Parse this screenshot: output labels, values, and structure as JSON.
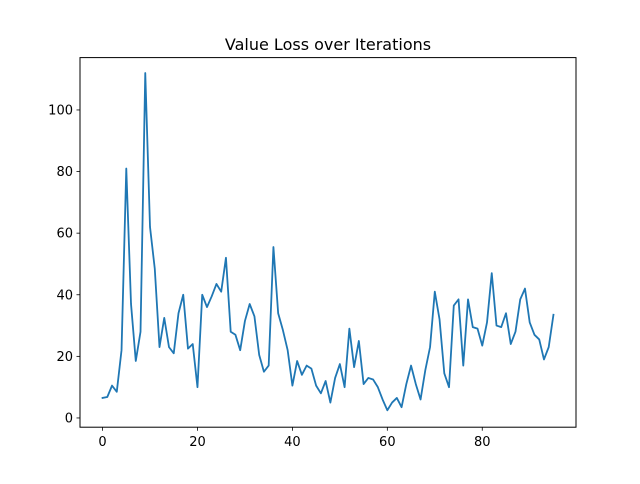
{
  "chart_data": {
    "type": "line",
    "title": "Value Loss over Iterations",
    "xlabel": "",
    "ylabel": "",
    "xlim": [
      -4.75,
      99.75
    ],
    "ylim": [
      -3.0,
      117.0
    ],
    "xticks": [
      0,
      20,
      40,
      60,
      80
    ],
    "yticks": [
      0,
      20,
      40,
      60,
      80,
      100
    ],
    "grid": false,
    "legend": "none",
    "series": [
      {
        "color": "#1f77b4",
        "x": [
          0,
          1,
          2,
          3,
          4,
          5,
          6,
          7,
          8,
          9,
          10,
          11,
          12,
          13,
          14,
          15,
          16,
          17,
          18,
          19,
          20,
          21,
          22,
          23,
          24,
          25,
          26,
          27,
          28,
          29,
          30,
          31,
          32,
          33,
          34,
          35,
          36,
          37,
          38,
          39,
          40,
          41,
          42,
          43,
          44,
          45,
          46,
          47,
          48,
          49,
          50,
          51,
          52,
          53,
          54,
          55,
          56,
          57,
          58,
          59,
          60,
          61,
          62,
          63,
          64,
          65,
          66,
          67,
          68,
          69,
          70,
          71,
          72,
          73,
          74,
          75,
          76,
          77,
          78,
          79,
          80,
          81,
          82,
          83,
          84,
          85,
          86,
          87,
          88,
          89,
          90,
          91,
          92,
          93,
          94,
          95
        ],
        "values": [
          6.5,
          6.8,
          10.5,
          8.5,
          22.0,
          81.0,
          37.0,
          18.5,
          28.0,
          112.0,
          62.0,
          48.5,
          23.0,
          32.5,
          23.0,
          21.0,
          34.0,
          40.0,
          22.5,
          24.0,
          10.0,
          40.0,
          36.0,
          39.5,
          43.5,
          41.0,
          52.0,
          28.0,
          27.0,
          22.0,
          31.5,
          37.0,
          33.0,
          20.5,
          15.0,
          17.0,
          55.5,
          34.0,
          28.5,
          22.0,
          10.5,
          18.5,
          14.0,
          17.0,
          16.0,
          10.5,
          8.0,
          12.0,
          5.0,
          13.0,
          17.5,
          10.0,
          29.0,
          16.5,
          25.0,
          11.0,
          13.0,
          12.5,
          10.0,
          6.0,
          2.5,
          5.0,
          6.5,
          3.5,
          11.0,
          17.0,
          11.0,
          6.0,
          15.5,
          23.0,
          41.0,
          32.0,
          14.5,
          10.0,
          36.5,
          38.5,
          17.0,
          38.5,
          29.5,
          29.0,
          23.5,
          31.0,
          47.0,
          30.0,
          29.5,
          34.0,
          24.0,
          28.0,
          38.5,
          42.0,
          31.0,
          27.0,
          25.5,
          19.0,
          23.0,
          33.5
        ]
      }
    ]
  }
}
